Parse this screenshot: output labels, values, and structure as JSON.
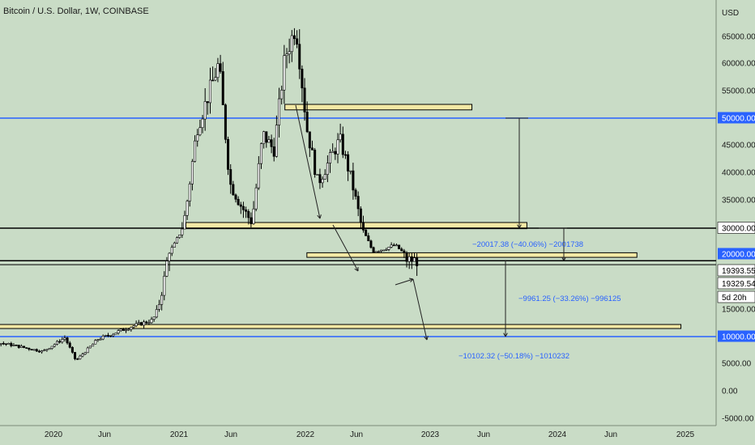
{
  "header": {
    "title": "Bitcoin / U.S. Dollar, 1W, COINBASE"
  },
  "chart_data": {
    "type": "candlestick",
    "symbol": "Bitcoin / U.S. Dollar",
    "interval": "1W",
    "exchange": "COINBASE",
    "currency_label": "USD",
    "y_ticks": [
      "65000.00",
      "60000.00",
      "55000.00",
      "50000.00",
      "45000.00",
      "40000.00",
      "35000.00",
      "30000.00",
      "20000.00",
      "19393.55",
      "19329.54",
      "15000.00",
      "10000.00",
      "5000.00",
      "0.00",
      "-5000.00"
    ],
    "x_ticks": [
      "2020",
      "Jun",
      "2021",
      "Jun",
      "2022",
      "Jun",
      "2023",
      "Jun",
      "2024",
      "Jun",
      "2025"
    ],
    "highlighted_prices": [
      {
        "label": "50000.00",
        "color": "#2962ff"
      },
      {
        "label": "30000.00",
        "color": "#000000"
      },
      {
        "label": "20000.00",
        "color": "#2962ff"
      },
      {
        "label": "19393.55",
        "color": "#000000"
      },
      {
        "label": "19329.54",
        "color": "#000000"
      },
      {
        "label": "10000.00",
        "color": "#2962ff"
      }
    ],
    "countdown": "5d 20h",
    "last_price": 19329.54,
    "measurements": [
      "−20017.38 (−40.06%) −2001738",
      "−9961.25 (−33.26%) −996125",
      "−10102.32 (−50.18%) −1010232"
    ],
    "horizontal_levels": [
      50000,
      30000,
      19393.55,
      10000
    ],
    "zones": [
      {
        "from": "2021-10",
        "to": "2023-03",
        "low": 51500,
        "high": 52500
      },
      {
        "from": "2021-01",
        "to": "2023-08",
        "low": 29800,
        "high": 31000
      },
      {
        "from": "2021-12",
        "to": "2024-06",
        "low": 19700,
        "high": 20500
      },
      {
        "from": "2019-01",
        "to": "2024-10",
        "low": 11600,
        "high": 12200
      }
    ],
    "grid": false,
    "legend": "none"
  }
}
